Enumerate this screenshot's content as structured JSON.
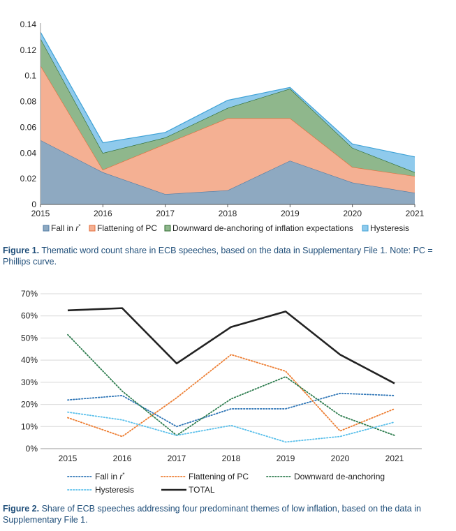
{
  "chart_data": [
    {
      "type": "area",
      "stacked": true,
      "categories": [
        "2015",
        "2016",
        "2017",
        "2018",
        "2019",
        "2020",
        "2021"
      ],
      "ylim": [
        0,
        0.14
      ],
      "yticks": [
        "0",
        "0.02",
        "0.04",
        "0.06",
        "0.08",
        "0.1",
        "0.12",
        "0.14"
      ],
      "series": [
        {
          "name": "Fall in r*",
          "values": [
            0.05,
            0.025,
            0.008,
            0.011,
            0.034,
            0.017,
            0.009
          ],
          "fill": "#8ea9c1",
          "stroke": "#4f7ba5"
        },
        {
          "name": "Flattening of PC",
          "values": [
            0.058,
            0.002,
            0.039,
            0.056,
            0.033,
            0.012,
            0.013
          ],
          "fill": "#f4b093",
          "stroke": "#e46c3a"
        },
        {
          "name": "Downward de-anchoring of inflation expectations",
          "values": [
            0.021,
            0.013,
            0.005,
            0.008,
            0.023,
            0.015,
            0.003
          ],
          "fill": "#8fb78c",
          "stroke": "#2e6b2f"
        },
        {
          "name": "Hysteresis",
          "values": [
            0.005,
            0.008,
            0.004,
            0.006,
            0.001,
            0.003,
            0.012
          ],
          "fill": "#8fcaec",
          "stroke": "#3fa2d6"
        }
      ],
      "legend": [
        {
          "label": "Fall in ",
          "italic": "r",
          "sup": "*"
        },
        {
          "label": "Flattening of PC",
          "italic": "",
          "sup": ""
        },
        {
          "label": "Downward de-anchoring of inflation expectations",
          "italic": "",
          "sup": ""
        },
        {
          "label": "Hysteresis",
          "italic": "",
          "sup": ""
        }
      ],
      "legend_position": "bottom",
      "caption_bold": "Figure 1.",
      "caption": " Thematic word count share in ECB speeches, based on the data in Supplementary File 1. Note: PC = Phillips curve."
    },
    {
      "type": "line",
      "categories": [
        "2015",
        "2016",
        "2017",
        "2018",
        "2019",
        "2020",
        "2021"
      ],
      "ylim": [
        0,
        70
      ],
      "yticks": [
        "0%",
        "10%",
        "20%",
        "30%",
        "40%",
        "50%",
        "60%",
        "70%"
      ],
      "series": [
        {
          "name": "Fall in r*",
          "values": [
            22,
            24,
            10,
            18,
            18,
            25,
            24
          ],
          "color": "#2e75b6",
          "dashed": true
        },
        {
          "name": "Flattening of PC",
          "values": [
            14,
            5.5,
            23,
            42.5,
            35,
            8,
            18
          ],
          "color": "#ed7d31",
          "dashed": true
        },
        {
          "name": "Downward de-anchoring",
          "values": [
            51.5,
            26,
            6,
            22.5,
            32.5,
            15,
            6
          ],
          "color": "#2e7d4f",
          "dashed": true
        },
        {
          "name": "Hysteresis",
          "values": [
            16.5,
            13,
            6,
            10.5,
            3,
            5.5,
            12
          ],
          "color": "#5bc0eb",
          "dashed": true
        },
        {
          "name": "TOTAL",
          "values": [
            62.5,
            63.5,
            38.5,
            55,
            62,
            42.5,
            29.5
          ],
          "color": "#222222",
          "dashed": false
        }
      ],
      "legend": [
        {
          "label": "Fall in ",
          "italic": "r",
          "sup": "*"
        },
        {
          "label": "Flattening of PC",
          "italic": "",
          "sup": ""
        },
        {
          "label": "Downward de-anchoring",
          "italic": "",
          "sup": ""
        },
        {
          "label": "Hysteresis",
          "italic": "",
          "sup": ""
        },
        {
          "label": "TOTAL",
          "italic": "",
          "sup": ""
        }
      ],
      "legend_position": "bottom",
      "caption_bold": "Figure 2.",
      "caption": " Share of ECB speeches addressing four predominant themes of low inflation, based on the data in Supplementary File 1."
    }
  ]
}
